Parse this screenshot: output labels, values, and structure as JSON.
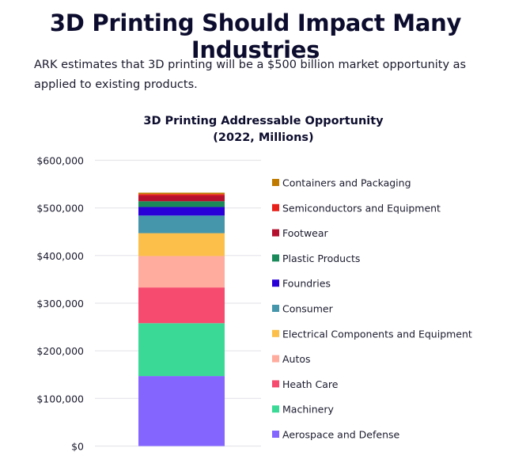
{
  "header": {
    "title": "3D Printing Should Impact Many Industries",
    "intro": "ARK estimates that 3D printing will be a $500 billion market opportunity as applied to existing products."
  },
  "chart_data": {
    "type": "bar",
    "stacked": true,
    "title": "3D Printing Addressable Opportunity",
    "subtitle": "(2022, Millions)",
    "xlabel": "",
    "ylabel": "",
    "ylim": [
      0,
      600000
    ],
    "y_ticks": [
      "$0",
      "$100,000",
      "$200,000",
      "$300,000",
      "$400,000",
      "$500,000",
      "$600,000"
    ],
    "grid": true,
    "legend_placement": "right",
    "series": [
      {
        "name": "Aerospace and Defense",
        "value": 147000,
        "color": "#8466ff"
      },
      {
        "name": "Machinery",
        "value": 111000,
        "color": "#3ad996"
      },
      {
        "name": "Heath Care",
        "value": 75000,
        "color": "#f64a6e"
      },
      {
        "name": "Autos",
        "value": 66000,
        "color": "#ffab9d"
      },
      {
        "name": "Electrical Components and Equipment",
        "value": 48000,
        "color": "#fcbf4a"
      },
      {
        "name": "Consumer",
        "value": 37000,
        "color": "#4596ab"
      },
      {
        "name": "Foundries",
        "value": 18000,
        "color": "#2a00d8"
      },
      {
        "name": "Plastic Products",
        "value": 12000,
        "color": "#1a8a5a"
      },
      {
        "name": "Footwear",
        "value": 12000,
        "color": "#b5112f"
      },
      {
        "name": "Semiconductors and Equipment",
        "value": 3000,
        "color": "#e8201a"
      },
      {
        "name": "Containers and Packaging",
        "value": 3000,
        "color": "#c07a00"
      }
    ]
  }
}
